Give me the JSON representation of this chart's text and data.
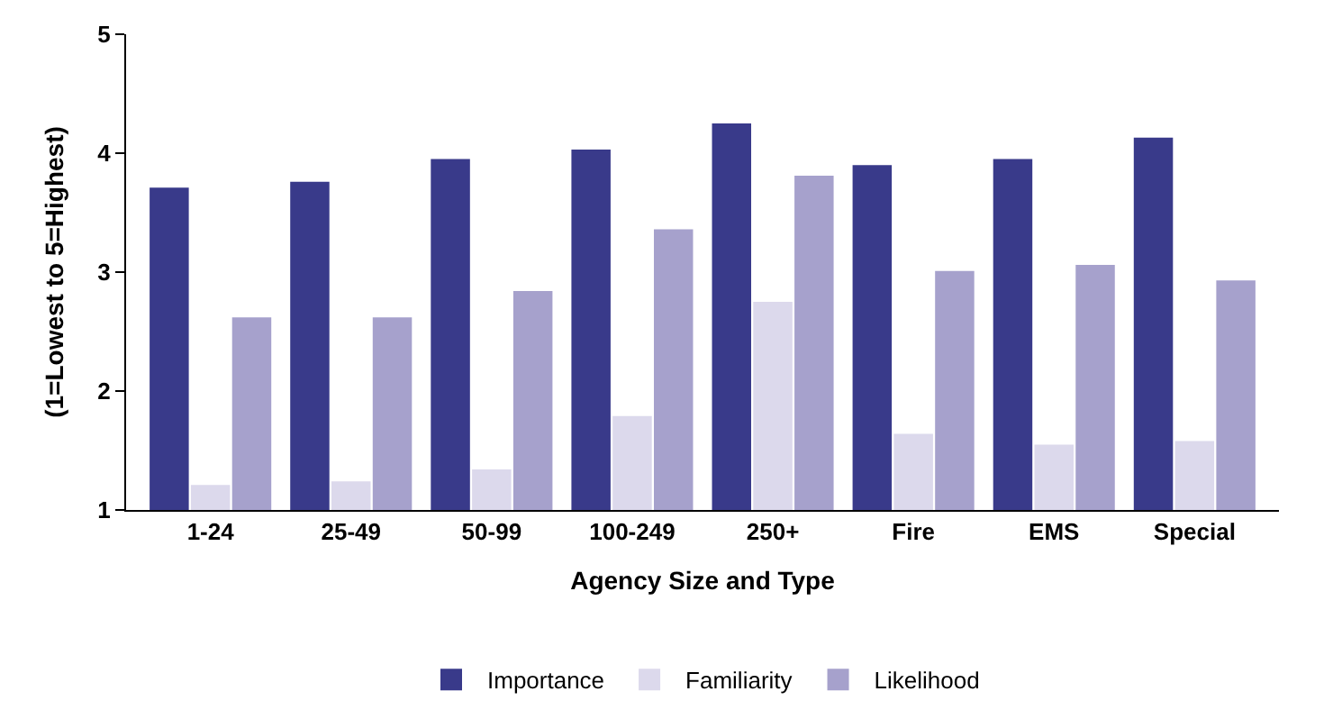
{
  "chart_data": {
    "type": "bar",
    "xlabel": "Agency Size and Type",
    "ylabel": "(1=Lowest to 5=Highest)",
    "categories": [
      "1-24",
      "25-49",
      "50-99",
      "100-249",
      "250+",
      "Fire",
      "EMS",
      "Special"
    ],
    "series": [
      {
        "name": "Importance",
        "color": "#393a8a",
        "values": [
          3.71,
          3.76,
          3.95,
          4.03,
          4.25,
          3.9,
          3.95,
          4.13
        ]
      },
      {
        "name": "Familiarity",
        "color": "#dcd9ec",
        "values": [
          1.21,
          1.24,
          1.34,
          1.79,
          2.75,
          1.64,
          1.55,
          1.58
        ]
      },
      {
        "name": "Likelihood",
        "color": "#a6a1cc",
        "values": [
          2.62,
          2.62,
          2.84,
          3.36,
          3.81,
          3.01,
          3.06,
          2.93
        ]
      }
    ],
    "ylim": [
      1,
      5
    ],
    "yticks": [
      1,
      2,
      3,
      4,
      5
    ],
    "legend": "bottom"
  }
}
